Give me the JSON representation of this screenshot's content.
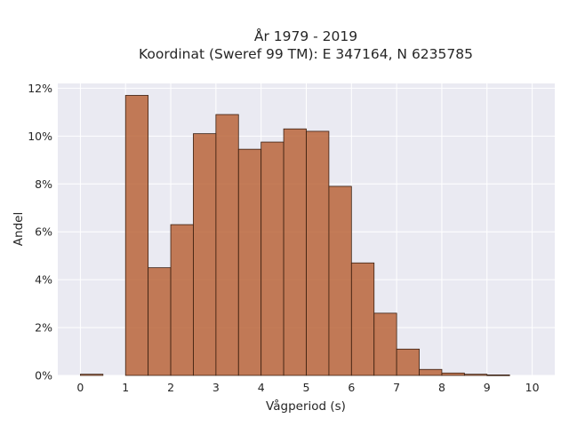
{
  "chart_data": {
    "type": "bar",
    "title_lines": [
      "År 1979 - 2019",
      "Koordinat (Sweref 99 TM): E 347164, N 6235785"
    ],
    "xlabel": "Vågperiod (s)",
    "ylabel": "Andel",
    "xlim": [
      -0.5,
      10.5
    ],
    "ylim": [
      0,
      12.2
    ],
    "x_ticks": [
      "0",
      "1",
      "2",
      "3",
      "4",
      "5",
      "6",
      "7",
      "8",
      "9",
      "10"
    ],
    "y_ticks": [
      "0%",
      "2%",
      "4%",
      "6%",
      "8%",
      "10%",
      "12%"
    ],
    "grid": true,
    "background": "#eaeaf2",
    "bar_color": "#b65d2e",
    "bin_width": 0.5,
    "bins": [
      {
        "x0": 0.0,
        "value": 0.05
      },
      {
        "x0": 1.0,
        "value": 11.7
      },
      {
        "x0": 1.5,
        "value": 4.5
      },
      {
        "x0": 2.0,
        "value": 6.3
      },
      {
        "x0": 2.5,
        "value": 10.1
      },
      {
        "x0": 3.0,
        "value": 10.9
      },
      {
        "x0": 3.5,
        "value": 9.45
      },
      {
        "x0": 4.0,
        "value": 9.75
      },
      {
        "x0": 4.5,
        "value": 10.3
      },
      {
        "x0": 5.0,
        "value": 10.2
      },
      {
        "x0": 5.5,
        "value": 7.9
      },
      {
        "x0": 6.0,
        "value": 4.7
      },
      {
        "x0": 6.5,
        "value": 2.6
      },
      {
        "x0": 7.0,
        "value": 1.1
      },
      {
        "x0": 7.5,
        "value": 0.25
      },
      {
        "x0": 8.0,
        "value": 0.1
      },
      {
        "x0": 8.5,
        "value": 0.05
      },
      {
        "x0": 9.0,
        "value": 0.02
      }
    ]
  }
}
